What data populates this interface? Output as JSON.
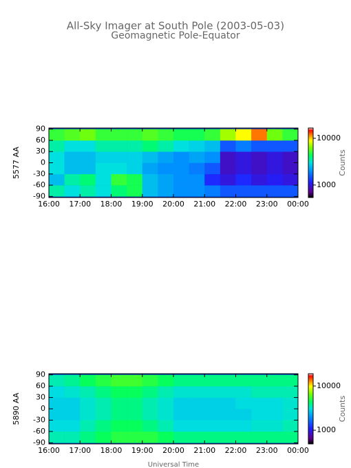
{
  "chart_data": [
    {
      "type": "heatmap",
      "title": "All-Sky Imager at South Pole (2003-05-03)",
      "subtitle": "Geomagnetic Pole-Equator",
      "ylabel": "5577 AA",
      "xlim": [
        16,
        24
      ],
      "xticks": [
        {
          "value": 16,
          "label": "16:00"
        },
        {
          "value": 17,
          "label": "17:00"
        },
        {
          "value": 18,
          "label": "18:00"
        },
        {
          "value": 19,
          "label": "19:00"
        },
        {
          "value": 20,
          "label": "20:00"
        },
        {
          "value": 21,
          "label": "21:00"
        },
        {
          "value": 22,
          "label": "22:00"
        },
        {
          "value": 23,
          "label": "23:00"
        },
        {
          "value": 24,
          "label": "00:00"
        }
      ],
      "ylim": [
        -93,
        93
      ],
      "yticks": [
        90,
        60,
        30,
        0,
        -30,
        -60,
        -90
      ],
      "xbins": [
        16,
        16.5,
        17,
        17.5,
        18,
        18.5,
        19,
        19.5,
        20,
        20.5,
        21,
        21.5,
        22,
        22.5,
        23,
        23.5,
        24
      ],
      "ybins": [
        -90,
        -60,
        -30,
        0,
        30,
        60,
        90
      ],
      "z": [
        [
          3500,
          3000,
          3500,
          3000,
          4000,
          4500,
          2500,
          2200,
          2000,
          2000,
          1800,
          1500,
          1500,
          1500,
          1500,
          1500
        ],
        [
          2500,
          3500,
          4000,
          3000,
          5000,
          4500,
          2500,
          2200,
          2000,
          2000,
          1200,
          1000,
          1200,
          1000,
          1100,
          1000
        ],
        [
          3000,
          2500,
          2500,
          3000,
          3000,
          2800,
          2200,
          2000,
          2000,
          1800,
          1500,
          900,
          1000,
          900,
          1000,
          900
        ],
        [
          3000,
          2500,
          2500,
          2800,
          2800,
          2800,
          2500,
          2200,
          2000,
          2200,
          2000,
          900,
          1000,
          900,
          1000,
          900
        ],
        [
          3500,
          3000,
          3000,
          3500,
          3500,
          3500,
          4000,
          3500,
          3000,
          2800,
          2500,
          1500,
          1800,
          1500,
          1500,
          1500
        ],
        [
          5000,
          5500,
          6000,
          5000,
          5000,
          5000,
          5500,
          5000,
          4500,
          4500,
          5000,
          7000,
          9000,
          12000,
          6000,
          5000
        ]
      ],
      "clim": [
        540,
        16600
      ],
      "cticks": [
        1000,
        10000
      ],
      "clabel": "Counts",
      "log_color": true
    },
    {
      "type": "heatmap",
      "ylabel": "5890 AA",
      "xlabel": "Universal Time",
      "xlim": [
        16,
        24
      ],
      "xticks": [
        {
          "value": 16,
          "label": "16:00"
        },
        {
          "value": 17,
          "label": "17:00"
        },
        {
          "value": 18,
          "label": "18:00"
        },
        {
          "value": 19,
          "label": "19:00"
        },
        {
          "value": 20,
          "label": "20:00"
        },
        {
          "value": 21,
          "label": "21:00"
        },
        {
          "value": 22,
          "label": "22:00"
        },
        {
          "value": 23,
          "label": "23:00"
        },
        {
          "value": 24,
          "label": "00:00"
        }
      ],
      "ylim": [
        -93,
        93
      ],
      "yticks": [
        90,
        60,
        30,
        0,
        -30,
        -60,
        -90
      ],
      "xbins": [
        16,
        16.5,
        17,
        17.5,
        18,
        18.5,
        19,
        19.5,
        20,
        20.5,
        21,
        21.5,
        22,
        22.5,
        23,
        23.5,
        24
      ],
      "ybins": [
        -90,
        -60,
        -30,
        0,
        30,
        60,
        90
      ],
      "z": [
        [
          3500,
          3500,
          4000,
          4500,
          5000,
          5000,
          5000,
          4500,
          4000,
          4000,
          4000,
          4000,
          4000,
          4000,
          4000,
          4000
        ],
        [
          3000,
          3000,
          3500,
          4000,
          4500,
          4500,
          4000,
          3500,
          3000,
          3000,
          3000,
          3000,
          3000,
          3200,
          3200,
          3500
        ],
        [
          2800,
          2800,
          3200,
          3500,
          4000,
          4000,
          3500,
          3200,
          2800,
          2800,
          2800,
          2800,
          2800,
          3000,
          3000,
          3200
        ],
        [
          2800,
          2800,
          3200,
          3500,
          4000,
          4000,
          3500,
          3200,
          2800,
          2800,
          2800,
          2800,
          3000,
          3000,
          3000,
          3200
        ],
        [
          3000,
          3200,
          3500,
          4000,
          4500,
          4500,
          4000,
          3500,
          3200,
          3200,
          3200,
          3200,
          3200,
          3500,
          3500,
          3500
        ],
        [
          3500,
          3800,
          4500,
          5000,
          5500,
          5500,
          5000,
          4500,
          4000,
          4000,
          4000,
          4000,
          4000,
          4000,
          4000,
          4000
        ]
      ],
      "clim": [
        490,
        19000
      ],
      "cticks": [
        1000,
        10000
      ],
      "clabel": "Counts",
      "log_color": true
    }
  ]
}
